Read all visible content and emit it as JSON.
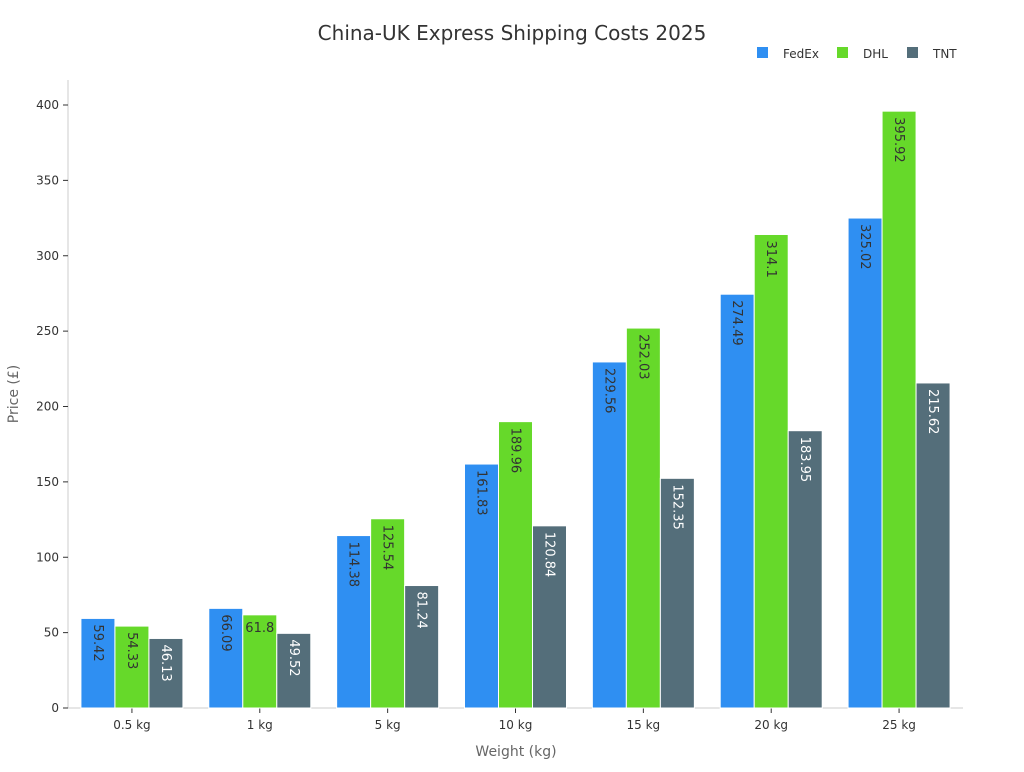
{
  "chart_data": {
    "type": "bar",
    "title": "China-UK Express Shipping Costs 2025",
    "xlabel": "Weight (kg)",
    "ylabel": "Price (£)",
    "categories": [
      "0.5 kg",
      "1 kg",
      "5 kg",
      "10 kg",
      "15 kg",
      "20 kg",
      "25 kg"
    ],
    "ylim": [
      0,
      400
    ],
    "yticks": [
      0,
      50,
      100,
      150,
      200,
      250,
      300,
      350,
      400
    ],
    "grid": false,
    "legend": "top-right",
    "series": [
      {
        "name": "FedEx",
        "color": "#2f8ff2",
        "label_color": "#333333",
        "values": [
          59.42,
          66.09,
          114.38,
          161.83,
          229.56,
          274.49,
          325.02
        ]
      },
      {
        "name": "DHL",
        "color": "#66d92a",
        "label_color": "#333333",
        "values": [
          54.33,
          61.8,
          125.54,
          189.96,
          252.03,
          314.1,
          395.92
        ]
      },
      {
        "name": "TNT",
        "color": "#546e7a",
        "label_color": "#ffffff",
        "values": [
          46.13,
          49.52,
          81.24,
          120.84,
          152.35,
          183.95,
          215.62
        ]
      }
    ]
  }
}
